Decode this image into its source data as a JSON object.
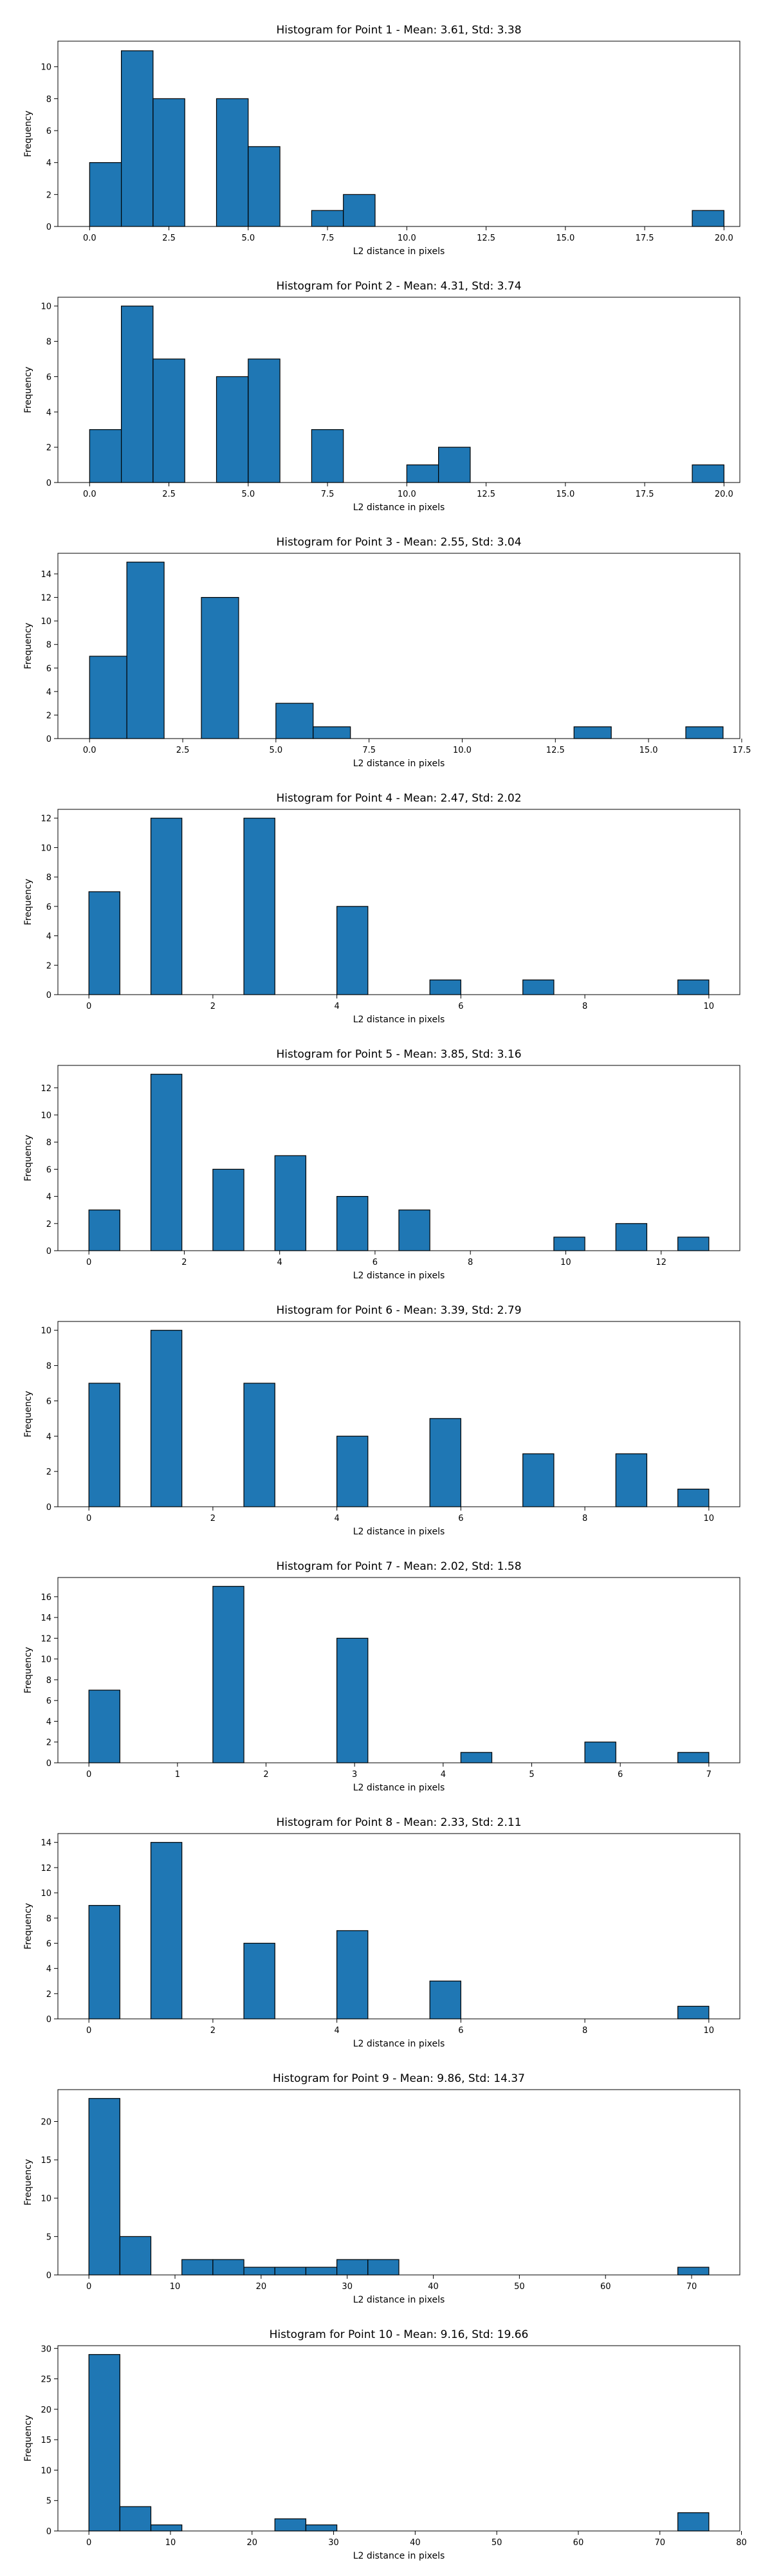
{
  "chart_data": [
    {
      "type": "bar",
      "title": "Histogram for Point 1 - Mean: 3.61, Std: 3.38",
      "xlabel": "L2 distance in pixels",
      "ylabel": "Frequency",
      "xlim": [
        -1,
        20.5
      ],
      "ylim": [
        0,
        11.6
      ],
      "xticks": [
        0,
        2.5,
        5,
        7.5,
        10,
        12.5,
        15,
        17.5,
        20
      ],
      "xticklabels": [
        "0.0",
        "2.5",
        "5.0",
        "7.5",
        "10.0",
        "12.5",
        "15.0",
        "17.5",
        "20.0"
      ],
      "yticks": [
        0,
        2,
        4,
        6,
        8,
        10
      ],
      "bins": [
        [
          0,
          1
        ],
        [
          1,
          2
        ],
        [
          2,
          3
        ],
        [
          4,
          5
        ],
        [
          5,
          6
        ],
        [
          7,
          8
        ],
        [
          8,
          9
        ],
        [
          19,
          20
        ]
      ],
      "values": [
        4,
        11,
        8,
        8,
        5,
        1,
        2,
        1
      ],
      "color": "#1f77b4"
    },
    {
      "type": "bar",
      "title": "Histogram for Point 2 - Mean: 4.31, Std: 3.74",
      "xlabel": "L2 distance in pixels",
      "ylabel": "Frequency",
      "xlim": [
        -1,
        20.5
      ],
      "ylim": [
        0,
        10.5
      ],
      "xticks": [
        0,
        2.5,
        5,
        7.5,
        10,
        12.5,
        15,
        17.5,
        20
      ],
      "xticklabels": [
        "0.0",
        "2.5",
        "5.0",
        "7.5",
        "10.0",
        "12.5",
        "15.0",
        "17.5",
        "20.0"
      ],
      "yticks": [
        0,
        2,
        4,
        6,
        8,
        10
      ],
      "bins": [
        [
          0,
          1
        ],
        [
          1,
          2
        ],
        [
          2,
          3
        ],
        [
          4,
          5
        ],
        [
          5,
          6
        ],
        [
          7,
          8
        ],
        [
          10,
          11
        ],
        [
          11,
          12
        ],
        [
          19,
          20
        ]
      ],
      "values": [
        3,
        10,
        7,
        6,
        7,
        3,
        1,
        2,
        1
      ],
      "color": "#1f77b4"
    },
    {
      "type": "bar",
      "title": "Histogram for Point 3 - Mean: 2.55, Std: 3.04",
      "xlabel": "L2 distance in pixels",
      "ylabel": "Frequency",
      "xlim": [
        -0.85,
        17.45
      ],
      "ylim": [
        0,
        15.75
      ],
      "xticks": [
        0,
        2.5,
        5,
        7.5,
        10,
        12.5,
        15,
        17.5
      ],
      "xticklabels": [
        "0.0",
        "2.5",
        "5.0",
        "7.5",
        "10.0",
        "12.5",
        "15.0",
        "17.5"
      ],
      "yticks": [
        0,
        2,
        4,
        6,
        8,
        10,
        12,
        14
      ],
      "bins": [
        [
          0,
          1
        ],
        [
          1,
          2
        ],
        [
          3,
          4
        ],
        [
          5,
          6
        ],
        [
          6,
          7
        ],
        [
          13,
          14
        ],
        [
          16,
          17
        ]
      ],
      "values": [
        7,
        15,
        12,
        3,
        1,
        1,
        1
      ],
      "color": "#1f77b4"
    },
    {
      "type": "bar",
      "title": "Histogram for Point 4 - Mean: 2.47, Std: 2.02",
      "xlabel": "L2 distance in pixels",
      "ylabel": "Frequency",
      "xlim": [
        -0.5,
        10.5
      ],
      "ylim": [
        0,
        12.6
      ],
      "xticks": [
        0,
        2,
        4,
        6,
        8,
        10
      ],
      "xticklabels": [
        "0",
        "2",
        "4",
        "6",
        "8",
        "10"
      ],
      "yticks": [
        0,
        2,
        4,
        6,
        8,
        10,
        12
      ],
      "bins": [
        [
          0,
          0.5
        ],
        [
          1,
          1.5
        ],
        [
          2.5,
          3
        ],
        [
          4,
          4.5
        ],
        [
          5.5,
          6
        ],
        [
          7,
          7.5
        ],
        [
          9.5,
          10
        ]
      ],
      "values": [
        7,
        12,
        12,
        6,
        1,
        1,
        1
      ],
      "color": "#1f77b4"
    },
    {
      "type": "bar",
      "title": "Histogram for Point 5 - Mean: 3.85, Std: 3.16",
      "xlabel": "L2 distance in pixels",
      "ylabel": "Frequency",
      "xlim": [
        -0.65,
        13.65
      ],
      "ylim": [
        0,
        13.65
      ],
      "xticks": [
        0,
        2,
        4,
        6,
        8,
        10,
        12
      ],
      "xticklabels": [
        "0",
        "2",
        "4",
        "6",
        "8",
        "10",
        "12"
      ],
      "yticks": [
        0,
        2,
        4,
        6,
        8,
        10,
        12
      ],
      "bins": [
        [
          0,
          0.65
        ],
        [
          1.3,
          1.95
        ],
        [
          2.6,
          3.25
        ],
        [
          3.9,
          4.55
        ],
        [
          4.55,
          5.2
        ],
        [
          5.2,
          5.85
        ],
        [
          6.5,
          7.15
        ],
        [
          9.75,
          10.4
        ],
        [
          11.05,
          11.7
        ],
        [
          12.35,
          13
        ]
      ],
      "values": [
        3,
        13,
        6,
        7,
        0,
        4,
        3,
        1,
        2,
        1
      ],
      "color": "#1f77b4"
    },
    {
      "type": "bar",
      "title": "Histogram for Point 6 - Mean: 3.39, Std: 2.79",
      "xlabel": "L2 distance in pixels",
      "ylabel": "Frequency",
      "xlim": [
        -0.5,
        10.5
      ],
      "ylim": [
        0,
        10.5
      ],
      "xticks": [
        0,
        2,
        4,
        6,
        8,
        10
      ],
      "xticklabels": [
        "0",
        "2",
        "4",
        "6",
        "8",
        "10"
      ],
      "yticks": [
        0,
        2,
        4,
        6,
        8,
        10
      ],
      "bins": [
        [
          0,
          0.5
        ],
        [
          1,
          1.5
        ],
        [
          2.5,
          3
        ],
        [
          4,
          4.5
        ],
        [
          5.5,
          6
        ],
        [
          7,
          7.5
        ],
        [
          8.5,
          9
        ],
        [
          9.5,
          10
        ]
      ],
      "values": [
        7,
        10,
        7,
        4,
        5,
        3,
        3,
        1
      ],
      "color": "#1f77b4"
    },
    {
      "type": "bar",
      "title": "Histogram for Point 7 - Mean: 2.02, Std: 1.58",
      "xlabel": "L2 distance in pixels",
      "ylabel": "Frequency",
      "xlim": [
        -0.35,
        7.35
      ],
      "ylim": [
        0,
        17.85
      ],
      "xticks": [
        0,
        1,
        2,
        3,
        4,
        5,
        6,
        7
      ],
      "xticklabels": [
        "0",
        "1",
        "2",
        "3",
        "4",
        "5",
        "6",
        "7"
      ],
      "yticks": [
        0,
        2,
        4,
        6,
        8,
        10,
        12,
        14,
        16
      ],
      "bins": [
        [
          0,
          0.35
        ],
        [
          1.4,
          1.75
        ],
        [
          2.8,
          3.15
        ],
        [
          4.2,
          4.55
        ],
        [
          5.6,
          5.95
        ],
        [
          6.65,
          7
        ]
      ],
      "values": [
        7,
        17,
        12,
        1,
        2,
        1
      ],
      "color": "#1f77b4"
    },
    {
      "type": "bar",
      "title": "Histogram for Point 8 - Mean: 2.33, Std: 2.11",
      "xlabel": "L2 distance in pixels",
      "ylabel": "Frequency",
      "xlim": [
        -0.5,
        10.5
      ],
      "ylim": [
        0,
        14.7
      ],
      "xticks": [
        0,
        2,
        4,
        6,
        8,
        10
      ],
      "xticklabels": [
        "0",
        "2",
        "4",
        "6",
        "8",
        "10"
      ],
      "yticks": [
        0,
        2,
        4,
        6,
        8,
        10,
        12,
        14
      ],
      "bins": [
        [
          0,
          0.5
        ],
        [
          1,
          1.5
        ],
        [
          2.5,
          3
        ],
        [
          4,
          4.5
        ],
        [
          5.5,
          6
        ],
        [
          9.5,
          10
        ]
      ],
      "values": [
        9,
        14,
        6,
        7,
        3,
        1
      ],
      "color": "#1f77b4"
    },
    {
      "type": "bar",
      "title": "Histogram for Point 9 - Mean: 9.86, Std: 14.37",
      "xlabel": "L2 distance in pixels",
      "ylabel": "Frequency",
      "xlim": [
        -3.6,
        75.6
      ],
      "ylim": [
        0,
        24.15
      ],
      "xticks": [
        0,
        10,
        20,
        30,
        40,
        50,
        60,
        70
      ],
      "xticklabels": [
        "0",
        "10",
        "20",
        "30",
        "40",
        "50",
        "60",
        "70"
      ],
      "yticks": [
        0,
        5,
        10,
        15,
        20
      ],
      "bins": [
        [
          0,
          3.6
        ],
        [
          3.6,
          7.2
        ],
        [
          10.8,
          14.4
        ],
        [
          14.4,
          18
        ],
        [
          18,
          21.6
        ],
        [
          21.6,
          25.2
        ],
        [
          25.2,
          28.8
        ],
        [
          28.8,
          32.4
        ],
        [
          32.4,
          36
        ],
        [
          68.4,
          72
        ]
      ],
      "values": [
        23,
        5,
        2,
        2,
        1,
        1,
        1,
        2,
        2,
        1
      ],
      "color": "#1f77b4"
    },
    {
      "type": "bar",
      "title": "Histogram for Point 10 - Mean: 9.16, Std: 19.66",
      "xlabel": "L2 distance in pixels",
      "ylabel": "Frequency",
      "xlim": [
        -3.8,
        79.8
      ],
      "ylim": [
        0,
        30.45
      ],
      "xticks": [
        0,
        10,
        20,
        30,
        40,
        50,
        60,
        70,
        80
      ],
      "xticklabels": [
        "0",
        "10",
        "20",
        "30",
        "40",
        "50",
        "60",
        "70",
        "80"
      ],
      "yticks": [
        0,
        5,
        10,
        15,
        20,
        25,
        30
      ],
      "bins": [
        [
          0,
          3.8
        ],
        [
          3.8,
          7.6
        ],
        [
          7.6,
          11.4
        ],
        [
          22.8,
          26.6
        ],
        [
          26.6,
          30.4
        ],
        [
          72.2,
          76
        ]
      ],
      "values": [
        29,
        4,
        1,
        2,
        1,
        3
      ],
      "color": "#1f77b4"
    }
  ]
}
